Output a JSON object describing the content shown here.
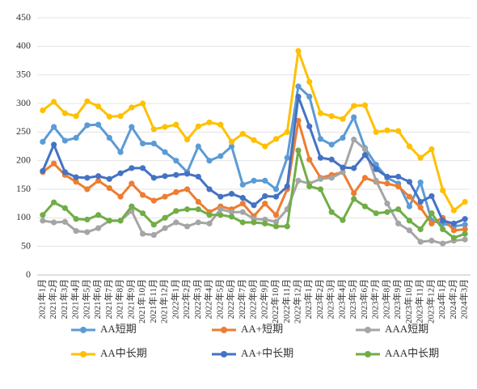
{
  "chart_data": {
    "type": "line",
    "categories": [
      "2021年1月",
      "2021年2月",
      "2021年3月",
      "2021年4月",
      "2021年5月",
      "2021年6月",
      "2021年7月",
      "2021年8月",
      "2021年9月",
      "2021年10月",
      "2021年11月",
      "2021年12月",
      "2022年1月",
      "2022年2月",
      "2022年3月",
      "2022年4月",
      "2022年5月",
      "2022年6月",
      "2022年7月",
      "2022年8月",
      "2022年9月",
      "2022年10月",
      "2022年11月",
      "2022年12月",
      "2023年1月",
      "2023年2月",
      "2023年3月",
      "2023年4月",
      "2023年5月",
      "2023年6月",
      "2023年7月",
      "2023年8月",
      "2023年9月",
      "2023年10月",
      "2023年11月",
      "2023年12月",
      "2024年1月",
      "2024年2月",
      "2024年3月"
    ],
    "series": [
      {
        "name": "AA短期",
        "color": "#5b9bd5",
        "values": [
          233,
          259,
          235,
          240,
          262,
          263,
          240,
          215,
          259,
          230,
          230,
          215,
          200,
          180,
          225,
          200,
          208,
          225,
          158,
          165,
          165,
          150,
          205,
          330,
          312,
          238,
          228,
          240,
          276,
          222,
          193,
          170,
          160,
          120,
          162,
          95,
          90,
          85,
          88
        ]
      },
      {
        "name": "AA+短期",
        "color": "#ed7d31",
        "values": [
          180,
          195,
          175,
          163,
          150,
          165,
          152,
          137,
          160,
          140,
          130,
          137,
          145,
          150,
          128,
          110,
          120,
          115,
          125,
          103,
          125,
          105,
          150,
          270,
          202,
          170,
          175,
          180,
          143,
          170,
          163,
          160,
          155,
          137,
          118,
          90,
          100,
          78,
          80
        ]
      },
      {
        "name": "AAA短期",
        "color": "#a5a5a5",
        "values": [
          95,
          92,
          93,
          77,
          75,
          82,
          95,
          95,
          112,
          72,
          70,
          82,
          92,
          85,
          92,
          90,
          115,
          110,
          110,
          98,
          97,
          93,
          115,
          165,
          160,
          168,
          170,
          180,
          237,
          220,
          165,
          125,
          90,
          78,
          58,
          60,
          55,
          60,
          62
        ]
      },
      {
        "name": "AA中长期",
        "color": "#ffc000",
        "values": [
          288,
          303,
          283,
          278,
          304,
          295,
          277,
          278,
          293,
          300,
          255,
          259,
          263,
          237,
          260,
          267,
          263,
          233,
          247,
          236,
          225,
          238,
          250,
          392,
          338,
          283,
          278,
          273,
          296,
          297,
          250,
          253,
          252,
          225,
          205,
          220,
          148,
          113,
          128
        ]
      },
      {
        "name": "AA+中长期",
        "color": "#4472c4",
        "values": [
          182,
          228,
          180,
          171,
          170,
          173,
          168,
          178,
          187,
          187,
          170,
          173,
          175,
          177,
          172,
          150,
          137,
          142,
          135,
          122,
          138,
          137,
          155,
          312,
          260,
          205,
          202,
          188,
          187,
          210,
          185,
          172,
          172,
          163,
          128,
          138,
          95,
          90,
          98
        ]
      },
      {
        "name": "AAA中长期",
        "color": "#70ad47",
        "values": [
          105,
          127,
          117,
          98,
          97,
          105,
          95,
          95,
          120,
          108,
          88,
          100,
          112,
          115,
          115,
          105,
          105,
          102,
          92,
          92,
          90,
          85,
          85,
          218,
          155,
          150,
          110,
          96,
          133,
          120,
          108,
          110,
          115,
          95,
          80,
          108,
          80,
          65,
          72
        ]
      }
    ],
    "ylim": [
      0,
      450
    ],
    "yticks": [
      0,
      50,
      100,
      150,
      200,
      250,
      300,
      350,
      400,
      450
    ],
    "grid": true
  }
}
